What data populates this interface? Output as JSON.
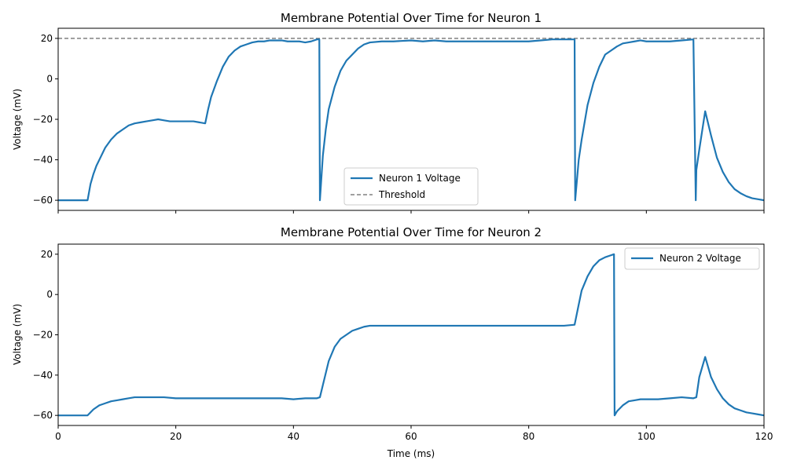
{
  "chart_data": [
    {
      "type": "line",
      "title": "Membrane Potential Over Time for Neuron 1",
      "xlabel": "",
      "ylabel": "Voltage (mV)",
      "xlim": [
        0,
        120
      ],
      "ylim": [
        -65,
        25
      ],
      "xticks": [
        0,
        20,
        40,
        60,
        80,
        100,
        120
      ],
      "xtick_labels_shown": false,
      "yticks": [
        -60,
        -40,
        -20,
        0,
        20
      ],
      "grid": false,
      "legend_placement": "lower-center",
      "series": [
        {
          "name": "Neuron 1 Voltage",
          "color": "#1f77b4",
          "x": [
            0,
            5,
            5.5,
            6,
            6.5,
            7,
            8,
            9,
            10,
            11,
            12,
            13,
            14,
            15,
            16,
            17,
            18,
            19,
            20,
            21,
            22,
            23,
            24,
            25,
            25.5,
            26,
            27,
            28,
            29,
            30,
            31,
            32,
            33,
            34,
            35,
            36,
            37,
            38,
            39,
            40,
            41,
            42,
            43,
            44,
            44.4,
            44.5,
            45,
            45.5,
            46,
            47,
            48,
            49,
            50,
            51,
            52,
            53,
            55,
            57,
            60,
            62,
            64,
            66,
            68,
            70,
            72,
            74,
            76,
            78,
            80,
            82,
            84,
            86,
            87.8,
            87.9,
            88.5,
            89,
            90,
            91,
            92,
            93,
            94,
            95,
            96,
            97,
            98,
            99,
            100,
            102,
            104,
            106,
            108,
            108.4,
            108.5,
            109,
            110,
            111,
            112,
            113,
            114,
            115,
            116,
            117,
            118,
            119,
            120
          ],
          "values": [
            -60,
            -60,
            -52,
            -47,
            -43,
            -40,
            -34,
            -30,
            -27,
            -25,
            -23,
            -22,
            -21.5,
            -21,
            -20.5,
            -20,
            -20.5,
            -21,
            -21,
            -21,
            -21,
            -21,
            -21.5,
            -22,
            -15,
            -9,
            -1,
            6,
            11,
            14,
            16,
            17,
            18,
            18.5,
            18.5,
            19,
            19,
            19,
            18.5,
            18.5,
            18.5,
            18,
            18.5,
            19.5,
            19.5,
            -60,
            -38,
            -25,
            -15,
            -4,
            4,
            9,
            12,
            15,
            17,
            18,
            18.5,
            18.5,
            19,
            18.5,
            19,
            18.5,
            18.5,
            18.5,
            18.5,
            18.5,
            18.5,
            18.5,
            18.5,
            19,
            19.5,
            19.5,
            19.5,
            -60,
            -40,
            -30,
            -13,
            -2,
            6,
            12,
            14,
            16,
            17.5,
            18,
            18.5,
            19,
            18.5,
            18.5,
            18.5,
            19,
            19.5,
            -60,
            -45,
            -35,
            -16,
            -28,
            -39,
            -46,
            -51,
            -54.5,
            -56.5,
            -58,
            -59,
            -59.5,
            -60
          ]
        },
        {
          "name": "Threshold",
          "color": "#808080",
          "dashed": true,
          "x": [
            0,
            120
          ],
          "values": [
            20,
            20
          ]
        }
      ]
    },
    {
      "type": "line",
      "title": "Membrane Potential Over Time for Neuron 2",
      "xlabel": "Time (ms)",
      "ylabel": "Voltage (mV)",
      "xlim": [
        0,
        120
      ],
      "ylim": [
        -65,
        25
      ],
      "xticks": [
        0,
        20,
        40,
        60,
        80,
        100,
        120
      ],
      "xtick_labels_shown": true,
      "yticks": [
        -60,
        -40,
        -20,
        0,
        20
      ],
      "grid": false,
      "legend_placement": "upper-right",
      "series": [
        {
          "name": "Neuron 2 Voltage",
          "color": "#1f77b4",
          "x": [
            0,
            5,
            6,
            7,
            8,
            9,
            10,
            11,
            12,
            13,
            14,
            16,
            18,
            20,
            22,
            24,
            26,
            28,
            30,
            32,
            34,
            36,
            38,
            40,
            42,
            44,
            44.5,
            45,
            46,
            47,
            48,
            49,
            50,
            51,
            52,
            53,
            55,
            57,
            60,
            62,
            64,
            66,
            68,
            70,
            72,
            74,
            76,
            78,
            80,
            82,
            84,
            86,
            87.8,
            88.5,
            89,
            90,
            91,
            92,
            93,
            94,
            94.5,
            94.6,
            95,
            96,
            97,
            98,
            99,
            100,
            102,
            104,
            106,
            108,
            108.5,
            109,
            110,
            111,
            112,
            113,
            114,
            115,
            116,
            117,
            118,
            119,
            120
          ],
          "values": [
            -60,
            -60,
            -57,
            -55,
            -54,
            -53,
            -52.5,
            -52,
            -51.5,
            -51,
            -51,
            -51,
            -51,
            -51.5,
            -51.5,
            -51.5,
            -51.5,
            -51.5,
            -51.5,
            -51.5,
            -51.5,
            -51.5,
            -51.5,
            -52,
            -51.5,
            -51.5,
            -51,
            -45,
            -33,
            -26,
            -22,
            -20,
            -18,
            -17,
            -16,
            -15.5,
            -15.5,
            -15.5,
            -15.5,
            -15.5,
            -15.5,
            -15.5,
            -15.5,
            -15.5,
            -15.5,
            -15.5,
            -15.5,
            -15.5,
            -15.5,
            -15.5,
            -15.5,
            -15.5,
            -15,
            -5,
            2,
            9,
            14,
            17,
            18.5,
            19.5,
            20,
            -60,
            -58,
            -55,
            -53,
            -52.5,
            -52,
            -52,
            -52,
            -51.5,
            -51,
            -51.5,
            -51,
            -41,
            -31,
            -41,
            -47,
            -51.5,
            -54.5,
            -56.5,
            -57.5,
            -58.5,
            -59,
            -59.5,
            -60
          ]
        }
      ]
    }
  ]
}
